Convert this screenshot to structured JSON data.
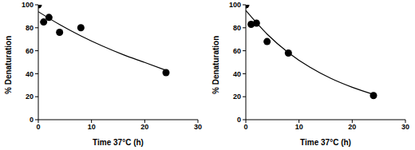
{
  "chart_data": [
    {
      "type": "scatter",
      "xlabel": "Time 37°C (h)",
      "ylabel": "% Denaturation",
      "xlim": [
        0,
        30
      ],
      "ylim": [
        0,
        100
      ],
      "xticks": [
        0,
        10,
        20,
        30
      ],
      "yticks": [
        0,
        20,
        40,
        60,
        80,
        100
      ],
      "series": [
        {
          "type": "scatter",
          "marker": "circle",
          "color": "#000000",
          "x": [
            0,
            1,
            2,
            4,
            8,
            24
          ],
          "values": [
            100,
            85,
            89,
            76,
            80,
            41
          ]
        },
        {
          "type": "line",
          "line_style": "solid",
          "color": "#000000",
          "x": [
            0,
            4,
            8,
            12,
            16,
            20,
            24
          ],
          "values": [
            94,
            82.8,
            72.9,
            64.2,
            56.5,
            49.8,
            43
          ]
        }
      ]
    },
    {
      "type": "scatter",
      "xlabel": "Time 37°C (h)",
      "ylabel": "% Denaturation",
      "xlim": [
        0,
        30
      ],
      "ylim": [
        0,
        100
      ],
      "xticks": [
        0,
        10,
        20,
        30
      ],
      "yticks": [
        0,
        20,
        40,
        60,
        80,
        100
      ],
      "series": [
        {
          "type": "scatter",
          "marker": "circle",
          "color": "#000000",
          "x": [
            0,
            1,
            2,
            4,
            8,
            24
          ],
          "values": [
            100,
            83,
            84,
            68,
            58,
            21
          ]
        },
        {
          "type": "line",
          "line_style": "solid",
          "color": "#000000",
          "x": [
            0,
            4,
            8,
            12,
            16,
            20,
            24
          ],
          "values": [
            95,
            74.5,
            58.4,
            45.8,
            35.9,
            28.2,
            22
          ]
        }
      ]
    }
  ]
}
